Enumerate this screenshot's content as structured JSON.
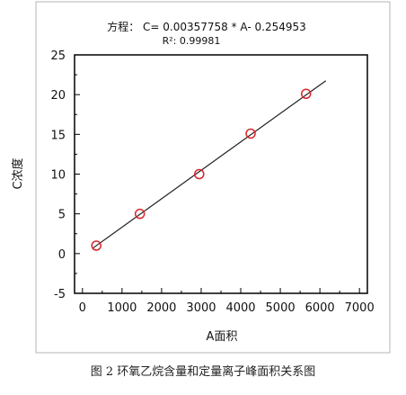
{
  "chart_data": {
    "type": "scatter",
    "equation_line1": "方程： C= 0.00357758 * A- 0.254953",
    "equation_line2": "R²: 0.99981",
    "xlabel": "A面积",
    "ylabel": "C浓度",
    "xlim": [
      -200,
      7200
    ],
    "ylim": [
      -5,
      25
    ],
    "x_ticks": [
      0,
      1000,
      2000,
      3000,
      4000,
      5000,
      6000,
      7000
    ],
    "y_ticks": [
      -5,
      0,
      5,
      10,
      15,
      20,
      25
    ],
    "grid": false,
    "points": [
      {
        "x": 350,
        "y": 1.0
      },
      {
        "x": 1450,
        "y": 5.0
      },
      {
        "x": 2950,
        "y": 10.0
      },
      {
        "x": 4250,
        "y": 15.1
      },
      {
        "x": 5650,
        "y": 20.1
      }
    ],
    "fit_line": {
      "slope": 0.00357758,
      "intercept": -0.254953,
      "x_range": [
        250,
        6150
      ]
    },
    "colors": {
      "marker": "#d9262b",
      "line": "#222222",
      "axis": "#000000"
    }
  },
  "caption": "图 2 环氧乙烷含量和定量离子峰面积关系图"
}
